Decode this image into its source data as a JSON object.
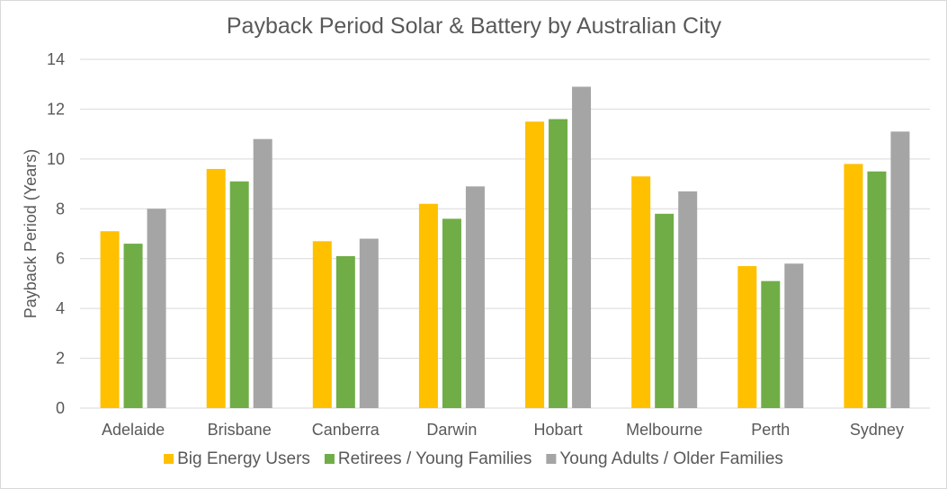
{
  "chart_data": {
    "type": "bar",
    "title": "Payback Period Solar & Battery by Australian City",
    "ylabel": "Payback Period (Years)",
    "xlabel": "",
    "ylim": [
      0,
      14
    ],
    "yticks": [
      0,
      2,
      4,
      6,
      8,
      10,
      12,
      14
    ],
    "grid": true,
    "legend_position": "bottom",
    "categories": [
      "Adelaide",
      "Brisbane",
      "Canberra",
      "Darwin",
      "Hobart",
      "Melbourne",
      "Perth",
      "Sydney"
    ],
    "series": [
      {
        "name": "Big Energy Users",
        "color": "#FFC000",
        "values": [
          7.1,
          9.6,
          6.7,
          8.2,
          11.5,
          9.3,
          5.7,
          9.8
        ]
      },
      {
        "name": "Retirees / Young Families",
        "color": "#70AD47",
        "values": [
          6.6,
          9.1,
          6.1,
          7.6,
          11.6,
          7.8,
          5.1,
          9.5
        ]
      },
      {
        "name": "Young Adults / Older Families",
        "color": "#A5A5A5",
        "values": [
          8.0,
          10.8,
          6.8,
          8.9,
          12.9,
          8.7,
          5.8,
          11.1
        ]
      }
    ]
  }
}
